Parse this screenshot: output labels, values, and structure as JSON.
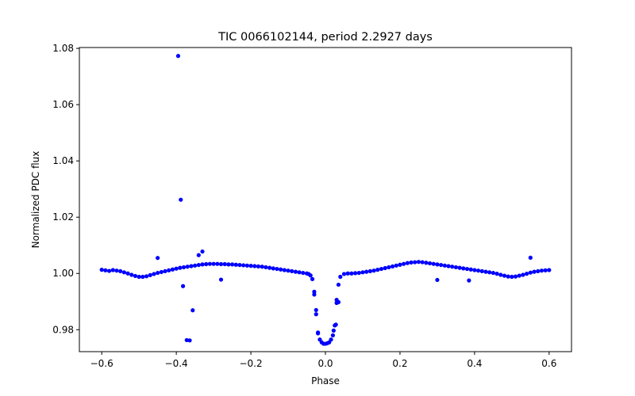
{
  "chart_data": {
    "type": "scatter",
    "title": "TIC 0066102144, period 2.2927 days",
    "xlabel": "Phase",
    "ylabel": "Normalized PDC flux",
    "xlim": [
      -0.66,
      0.66
    ],
    "ylim": [
      0.9722,
      1.0803
    ],
    "xticks": [
      "−0.6",
      "−0.4",
      "−0.2",
      "0.0",
      "0.2",
      "0.4",
      "0.6"
    ],
    "xtick_values": [
      -0.6,
      -0.4,
      -0.2,
      0.0,
      0.2,
      0.4,
      0.6
    ],
    "yticks": [
      "0.98",
      "1.00",
      "1.02",
      "1.04",
      "1.06",
      "1.08"
    ],
    "ytick_values": [
      0.98,
      1.0,
      1.02,
      1.04,
      1.06,
      1.08
    ],
    "grid": false,
    "marker_color": "#0000ff",
    "series": [
      {
        "points": [
          [
            -0.6,
            1.0013
          ],
          [
            -0.59,
            1.0011
          ],
          [
            -0.58,
            1.0009
          ],
          [
            -0.57,
            1.0012
          ],
          [
            -0.56,
            1.001
          ],
          [
            -0.55,
            1.0008
          ],
          [
            -0.54,
            1.0004
          ],
          [
            -0.53,
            1.0
          ],
          [
            -0.52,
            0.9995
          ],
          [
            -0.51,
            0.9991
          ],
          [
            -0.5,
            0.9988
          ],
          [
            -0.49,
            0.9988
          ],
          [
            -0.48,
            0.999
          ],
          [
            -0.47,
            0.9994
          ],
          [
            -0.46,
            0.9998
          ],
          [
            -0.45,
            1.0002
          ],
          [
            -0.44,
            1.0005
          ],
          [
            -0.43,
            1.0008
          ],
          [
            -0.42,
            1.0011
          ],
          [
            -0.41,
            1.0014
          ],
          [
            -0.4,
            1.0017
          ],
          [
            -0.39,
            1.002
          ],
          [
            -0.38,
            1.0022
          ],
          [
            -0.37,
            1.0024
          ],
          [
            -0.36,
            1.0026
          ],
          [
            -0.35,
            1.0028
          ],
          [
            -0.34,
            1.003
          ],
          [
            -0.33,
            1.0032
          ],
          [
            -0.32,
            1.0033
          ],
          [
            -0.31,
            1.0034
          ],
          [
            -0.3,
            1.0034
          ],
          [
            -0.29,
            1.0034
          ],
          [
            -0.28,
            1.0033
          ],
          [
            -0.27,
            1.0033
          ],
          [
            -0.26,
            1.0032
          ],
          [
            -0.25,
            1.0032
          ],
          [
            -0.24,
            1.0031
          ],
          [
            -0.23,
            1.003
          ],
          [
            -0.22,
            1.0029
          ],
          [
            -0.21,
            1.0028
          ],
          [
            -0.2,
            1.0027
          ],
          [
            -0.19,
            1.0026
          ],
          [
            -0.18,
            1.0025
          ],
          [
            -0.17,
            1.0024
          ],
          [
            -0.16,
            1.0022
          ],
          [
            -0.15,
            1.002
          ],
          [
            -0.14,
            1.0018
          ],
          [
            -0.13,
            1.0016
          ],
          [
            -0.12,
            1.0014
          ],
          [
            -0.11,
            1.0012
          ],
          [
            -0.1,
            1.001
          ],
          [
            -0.09,
            1.0008
          ],
          [
            -0.08,
            1.0006
          ],
          [
            -0.07,
            1.0004
          ],
          [
            -0.06,
            1.0002
          ],
          [
            -0.05,
            1.0
          ],
          [
            -0.045,
            0.9998
          ],
          [
            -0.04,
            0.9993
          ],
          [
            -0.035,
            0.998
          ],
          [
            -0.03,
            0.9935
          ],
          [
            -0.025,
            0.9855
          ],
          [
            -0.02,
            0.979
          ],
          [
            -0.015,
            0.9765
          ],
          [
            -0.01,
            0.9755
          ],
          [
            -0.005,
            0.975
          ],
          [
            0.0,
            0.975
          ],
          [
            0.005,
            0.9752
          ],
          [
            0.01,
            0.9755
          ],
          [
            0.015,
            0.9765
          ],
          [
            0.02,
            0.978
          ],
          [
            0.025,
            0.9815
          ],
          [
            0.03,
            0.9895
          ],
          [
            0.035,
            0.996
          ],
          [
            0.04,
            0.9988
          ],
          [
            0.05,
            0.9998
          ],
          [
            0.06,
            1.0
          ],
          [
            0.07,
            1.0
          ],
          [
            0.08,
            1.0001
          ],
          [
            0.09,
            1.0002
          ],
          [
            0.1,
            1.0004
          ],
          [
            0.11,
            1.0006
          ],
          [
            0.12,
            1.0008
          ],
          [
            0.13,
            1.001
          ],
          [
            0.14,
            1.0013
          ],
          [
            0.15,
            1.0016
          ],
          [
            0.16,
            1.0019
          ],
          [
            0.17,
            1.0022
          ],
          [
            0.18,
            1.0025
          ],
          [
            0.19,
            1.0028
          ],
          [
            0.2,
            1.0031
          ],
          [
            0.21,
            1.0034
          ],
          [
            0.22,
            1.0037
          ],
          [
            0.23,
            1.0039
          ],
          [
            0.24,
            1.004
          ],
          [
            0.25,
            1.0041
          ],
          [
            0.26,
            1.004
          ],
          [
            0.27,
            1.0038
          ],
          [
            0.28,
            1.0036
          ],
          [
            0.29,
            1.0034
          ],
          [
            0.3,
            1.0032
          ],
          [
            0.31,
            1.003
          ],
          [
            0.32,
            1.0028
          ],
          [
            0.33,
            1.0026
          ],
          [
            0.34,
            1.0024
          ],
          [
            0.35,
            1.0022
          ],
          [
            0.36,
            1.002
          ],
          [
            0.37,
            1.0018
          ],
          [
            0.38,
            1.0016
          ],
          [
            0.39,
            1.0014
          ],
          [
            0.4,
            1.0012
          ],
          [
            0.41,
            1.001
          ],
          [
            0.42,
            1.0008
          ],
          [
            0.43,
            1.0006
          ],
          [
            0.44,
            1.0004
          ],
          [
            0.45,
            1.0002
          ],
          [
            0.46,
            0.9999
          ],
          [
            0.47,
            0.9995
          ],
          [
            0.48,
            0.9992
          ],
          [
            0.49,
            0.9989
          ],
          [
            0.5,
            0.9988
          ],
          [
            0.51,
            0.9989
          ],
          [
            0.52,
            0.9992
          ],
          [
            0.53,
            0.9995
          ],
          [
            0.54,
            0.9999
          ],
          [
            0.55,
            1.0003
          ],
          [
            0.56,
            1.0006
          ],
          [
            0.57,
            1.0008
          ],
          [
            0.58,
            1.001
          ],
          [
            0.59,
            1.0011
          ],
          [
            0.6,
            1.0012
          ],
          [
            -0.395,
            1.0773
          ],
          [
            -0.388,
            1.0262
          ],
          [
            -0.382,
            0.9955
          ],
          [
            -0.372,
            0.9763
          ],
          [
            -0.364,
            0.9762
          ],
          [
            -0.356,
            0.9869
          ],
          [
            -0.34,
            1.0065
          ],
          [
            -0.33,
            1.0078
          ],
          [
            -0.45,
            1.0055
          ],
          [
            -0.28,
            0.9978
          ],
          [
            0.3,
            0.9977
          ],
          [
            0.385,
            0.9975
          ],
          [
            0.55,
            1.0056
          ],
          [
            0.035,
            0.9898
          ],
          [
            0.028,
            0.9818
          ],
          [
            0.03,
            0.9906
          ],
          [
            -0.03,
            0.9925
          ],
          [
            -0.025,
            0.987
          ],
          [
            -0.02,
            0.9787
          ],
          [
            0.022,
            0.9797
          ]
        ]
      }
    ]
  }
}
